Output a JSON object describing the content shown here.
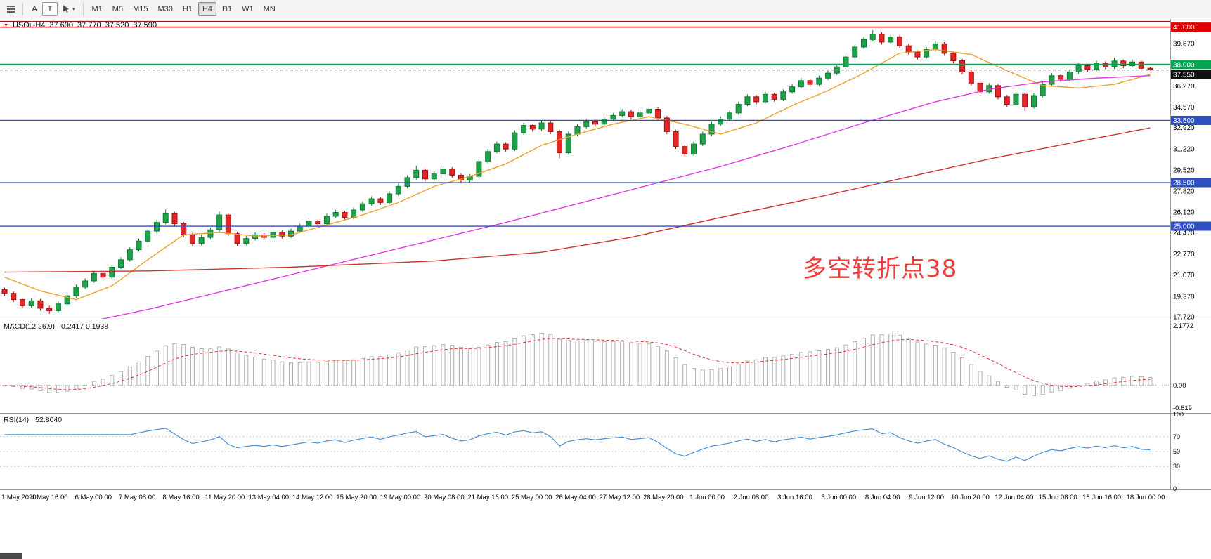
{
  "toolbar": {
    "letter_buttons": [
      "A",
      "T"
    ],
    "timeframes": [
      "M1",
      "M5",
      "M15",
      "M30",
      "H1",
      "H4",
      "D1",
      "W1",
      "MN"
    ],
    "active_timeframe": "H4"
  },
  "chart": {
    "header": {
      "symbol_timeframe": "USOil-H4",
      "open": "37.690",
      "high": "37.770",
      "low": "37.520",
      "close": "37.590"
    },
    "annotation": {
      "text": "多空转折点38",
      "color": "#f23b3b"
    },
    "current_price": {
      "value": 37.55,
      "label": "37.550"
    }
  },
  "macd_panel": {
    "title": "MACD(12,26,9)",
    "values": "0.2417 0.1938",
    "axis_labels": [
      "2.1772",
      "0.00",
      "-0.819"
    ]
  },
  "rsi_panel": {
    "title": "RSI(14)",
    "value": "52.8040",
    "axis_labels": [
      "100",
      "70",
      "50",
      "30",
      "0"
    ]
  },
  "chart_data": {
    "type": "candlestick",
    "symbol": "USOil",
    "timeframe": "H4",
    "x_range": [
      "1 May 2020",
      "18 Jun 2020"
    ],
    "y_range": [
      17.55,
      41.6
    ],
    "y_ticks": [
      "39.670",
      "36.270",
      "34.570",
      "32.920",
      "31.220",
      "29.520",
      "27.820",
      "26.120",
      "24.470",
      "22.770",
      "21.070",
      "19.370",
      "17.720"
    ],
    "x_labels": [
      "1 May 2020",
      "4 May 16:00",
      "6 May 00:00",
      "7 May 08:00",
      "8 May 16:00",
      "11 May 20:00",
      "13 May 04:00",
      "14 May 12:00",
      "15 May 20:00",
      "19 May 00:00",
      "20 May 08:00",
      "21 May 16:00",
      "25 May 00:00",
      "26 May 04:00",
      "27 May 12:00",
      "28 May 20:00",
      "1 Jun 00:00",
      "2 Jun 08:00",
      "3 Jun 16:00",
      "5 Jun 00:00",
      "8 Jun 04:00",
      "9 Jun 12:00",
      "10 Jun 20:00",
      "12 Jun 04:00",
      "15 Jun 08:00",
      "16 Jun 16:00",
      "18 Jun 00:00"
    ],
    "levels": [
      {
        "value": 41.45,
        "color": "#8e1b1b",
        "width": 1.6,
        "badge": null
      },
      {
        "value": 41.0,
        "color": "#e00000",
        "width": 1.4,
        "badge": "41.000",
        "badge_bg": "#e00000"
      },
      {
        "value": 38.0,
        "color": "#00a651",
        "width": 2.0,
        "badge": "38.000",
        "badge_bg": "#00a651"
      },
      {
        "value": 33.5,
        "color": "#2e4fc0",
        "width": 1.4,
        "badge": "33.500",
        "badge_bg": "#2e4fc0"
      },
      {
        "value": 28.5,
        "color": "#2e4fc0",
        "width": 1.4,
        "badge": "28.500",
        "badge_bg": "#2e4fc0"
      },
      {
        "value": 25.0,
        "color": "#2e4fc0",
        "width": 1.4,
        "badge": "25.000",
        "badge_bg": "#2e4fc0"
      }
    ],
    "candles": [
      [
        19.9,
        20.05,
        19.4,
        19.6
      ],
      [
        19.6,
        19.75,
        18.9,
        19.1
      ],
      [
        19.1,
        19.25,
        18.4,
        18.6
      ],
      [
        18.6,
        19.2,
        18.45,
        19.0
      ],
      [
        19.0,
        19.15,
        18.2,
        18.4
      ],
      [
        18.4,
        18.6,
        17.95,
        18.2
      ],
      [
        18.2,
        18.95,
        18.05,
        18.75
      ],
      [
        18.75,
        19.6,
        18.6,
        19.4
      ],
      [
        19.4,
        20.3,
        19.25,
        20.1
      ],
      [
        20.1,
        20.8,
        19.95,
        20.6
      ],
      [
        20.6,
        21.4,
        20.45,
        21.2
      ],
      [
        21.2,
        21.35,
        20.7,
        20.9
      ],
      [
        20.9,
        21.9,
        20.75,
        21.7
      ],
      [
        21.7,
        22.5,
        21.55,
        22.3
      ],
      [
        22.3,
        23.3,
        22.15,
        23.1
      ],
      [
        23.1,
        24.0,
        22.95,
        23.8
      ],
      [
        23.8,
        24.8,
        23.65,
        24.6
      ],
      [
        24.6,
        25.5,
        24.45,
        25.3
      ],
      [
        25.3,
        26.35,
        25.15,
        26.0
      ],
      [
        26.0,
        26.15,
        25.0,
        25.2
      ],
      [
        25.2,
        25.35,
        24.1,
        24.3
      ],
      [
        24.3,
        24.45,
        23.4,
        23.6
      ],
      [
        23.6,
        24.3,
        23.45,
        24.1
      ],
      [
        24.1,
        24.9,
        23.95,
        24.7
      ],
      [
        24.7,
        26.15,
        24.55,
        25.9
      ],
      [
        25.9,
        26.0,
        24.2,
        24.4
      ],
      [
        24.4,
        24.55,
        23.4,
        23.6
      ],
      [
        23.6,
        24.2,
        23.45,
        24.0
      ],
      [
        24.0,
        24.5,
        23.85,
        24.3
      ],
      [
        24.3,
        24.45,
        23.9,
        24.1
      ],
      [
        24.1,
        24.7,
        23.95,
        24.5
      ],
      [
        24.5,
        24.65,
        24.0,
        24.2
      ],
      [
        24.2,
        24.8,
        24.05,
        24.6
      ],
      [
        24.6,
        25.2,
        24.45,
        25.0
      ],
      [
        25.0,
        25.6,
        24.85,
        25.4
      ],
      [
        25.4,
        25.55,
        25.0,
        25.2
      ],
      [
        25.2,
        26.0,
        25.05,
        25.8
      ],
      [
        25.8,
        26.3,
        25.65,
        26.1
      ],
      [
        26.1,
        26.25,
        25.5,
        25.7
      ],
      [
        25.7,
        26.5,
        25.55,
        26.3
      ],
      [
        26.3,
        27.0,
        26.15,
        26.8
      ],
      [
        26.8,
        27.4,
        26.65,
        27.2
      ],
      [
        27.2,
        27.35,
        26.7,
        26.9
      ],
      [
        26.9,
        27.8,
        26.75,
        27.6
      ],
      [
        27.6,
        28.4,
        27.45,
        28.2
      ],
      [
        28.2,
        29.1,
        28.05,
        28.9
      ],
      [
        28.9,
        29.85,
        28.75,
        29.5
      ],
      [
        29.5,
        29.65,
        28.6,
        28.8
      ],
      [
        28.8,
        29.4,
        28.65,
        29.2
      ],
      [
        29.2,
        29.8,
        29.05,
        29.6
      ],
      [
        29.6,
        29.75,
        28.9,
        29.1
      ],
      [
        29.1,
        29.25,
        28.5,
        28.7
      ],
      [
        28.7,
        29.2,
        28.55,
        29.0
      ],
      [
        29.0,
        30.4,
        28.85,
        30.2
      ],
      [
        30.2,
        31.2,
        30.05,
        31.0
      ],
      [
        31.0,
        31.8,
        30.85,
        31.6
      ],
      [
        31.6,
        31.75,
        31.0,
        31.2
      ],
      [
        31.2,
        32.7,
        31.05,
        32.5
      ],
      [
        32.5,
        33.3,
        32.35,
        33.1
      ],
      [
        33.1,
        33.25,
        32.6,
        32.8
      ],
      [
        32.8,
        33.5,
        32.65,
        33.3
      ],
      [
        33.3,
        33.45,
        32.4,
        32.6
      ],
      [
        32.6,
        32.75,
        30.45,
        30.9
      ],
      [
        30.9,
        32.6,
        30.75,
        32.4
      ],
      [
        32.4,
        33.2,
        32.25,
        33.0
      ],
      [
        33.0,
        33.6,
        32.85,
        33.4
      ],
      [
        33.4,
        33.55,
        33.0,
        33.2
      ],
      [
        33.2,
        33.8,
        33.05,
        33.6
      ],
      [
        33.6,
        34.1,
        33.45,
        33.9
      ],
      [
        33.9,
        34.4,
        33.75,
        34.2
      ],
      [
        34.2,
        34.35,
        33.6,
        33.8
      ],
      [
        33.8,
        34.3,
        33.65,
        34.1
      ],
      [
        34.1,
        34.6,
        33.95,
        34.4
      ],
      [
        34.4,
        34.55,
        33.5,
        33.7
      ],
      [
        33.7,
        33.85,
        32.4,
        32.6
      ],
      [
        32.6,
        32.75,
        31.2,
        31.4
      ],
      [
        31.4,
        31.55,
        30.6,
        30.8
      ],
      [
        30.8,
        31.8,
        30.65,
        31.6
      ],
      [
        31.6,
        32.6,
        31.45,
        32.4
      ],
      [
        32.4,
        33.4,
        32.25,
        33.2
      ],
      [
        33.2,
        33.8,
        33.05,
        33.6
      ],
      [
        33.6,
        34.3,
        33.45,
        34.1
      ],
      [
        34.1,
        35.0,
        33.95,
        34.8
      ],
      [
        34.8,
        35.6,
        34.65,
        35.4
      ],
      [
        35.4,
        35.55,
        34.8,
        35.0
      ],
      [
        35.0,
        35.8,
        34.85,
        35.6
      ],
      [
        35.6,
        35.75,
        35.0,
        35.2
      ],
      [
        35.2,
        36.0,
        35.05,
        35.8
      ],
      [
        35.8,
        36.4,
        35.65,
        36.2
      ],
      [
        36.2,
        36.9,
        36.05,
        36.7
      ],
      [
        36.7,
        36.85,
        36.2,
        36.4
      ],
      [
        36.4,
        37.1,
        36.25,
        36.9
      ],
      [
        36.9,
        37.5,
        36.75,
        37.3
      ],
      [
        37.3,
        38.0,
        37.15,
        37.8
      ],
      [
        37.8,
        38.8,
        37.65,
        38.6
      ],
      [
        38.6,
        39.6,
        38.45,
        39.4
      ],
      [
        39.4,
        40.2,
        39.25,
        40.0
      ],
      [
        40.0,
        40.75,
        39.85,
        40.44
      ],
      [
        40.44,
        40.6,
        39.6,
        39.8
      ],
      [
        39.8,
        40.4,
        39.65,
        40.2
      ],
      [
        40.2,
        40.35,
        39.3,
        39.5
      ],
      [
        39.5,
        39.65,
        38.8,
        39.0
      ],
      [
        39.0,
        39.15,
        38.4,
        38.6
      ],
      [
        38.6,
        39.4,
        38.45,
        39.2
      ],
      [
        39.2,
        39.9,
        39.05,
        39.66
      ],
      [
        39.66,
        39.8,
        38.7,
        38.9
      ],
      [
        38.9,
        39.05,
        38.1,
        38.3
      ],
      [
        38.3,
        38.45,
        37.2,
        37.4
      ],
      [
        37.4,
        37.55,
        36.3,
        36.5
      ],
      [
        36.5,
        36.65,
        35.6,
        35.8
      ],
      [
        35.8,
        36.5,
        35.65,
        36.3
      ],
      [
        36.3,
        36.45,
        35.2,
        35.4
      ],
      [
        35.4,
        35.55,
        34.6,
        34.8
      ],
      [
        34.8,
        35.8,
        34.65,
        35.6
      ],
      [
        35.6,
        35.75,
        34.25,
        34.6
      ],
      [
        34.6,
        35.7,
        34.45,
        35.5
      ],
      [
        35.5,
        36.6,
        35.35,
        36.4
      ],
      [
        36.4,
        37.3,
        36.25,
        37.1
      ],
      [
        37.1,
        37.25,
        36.6,
        36.8
      ],
      [
        36.8,
        37.6,
        36.65,
        37.4
      ],
      [
        37.4,
        38.1,
        37.25,
        37.9
      ],
      [
        37.9,
        38.05,
        37.4,
        37.6
      ],
      [
        37.6,
        38.3,
        37.45,
        38.1
      ],
      [
        38.1,
        38.25,
        37.6,
        37.8
      ],
      [
        37.8,
        38.55,
        37.65,
        38.28
      ],
      [
        38.28,
        38.4,
        37.7,
        37.9
      ],
      [
        37.9,
        38.4,
        37.75,
        38.2
      ],
      [
        38.2,
        38.35,
        37.5,
        37.69
      ],
      [
        37.69,
        37.77,
        37.52,
        37.59
      ]
    ],
    "overlays": {
      "ma_fast": {
        "color": "#eda22e",
        "points": [
          [
            0,
            20.9
          ],
          [
            4,
            19.8
          ],
          [
            8,
            19.1
          ],
          [
            12,
            20.2
          ],
          [
            16,
            22.3
          ],
          [
            20,
            24.3
          ],
          [
            24,
            24.5
          ],
          [
            28,
            24.2
          ],
          [
            32,
            24.3
          ],
          [
            36,
            25.1
          ],
          [
            40,
            25.9
          ],
          [
            44,
            26.9
          ],
          [
            48,
            28.2
          ],
          [
            52,
            29.0
          ],
          [
            56,
            30.0
          ],
          [
            60,
            31.5
          ],
          [
            64,
            32.4
          ],
          [
            68,
            33.2
          ],
          [
            72,
            33.8
          ],
          [
            76,
            33.2
          ],
          [
            80,
            32.4
          ],
          [
            84,
            33.3
          ],
          [
            88,
            34.7
          ],
          [
            92,
            35.9
          ],
          [
            96,
            37.3
          ],
          [
            100,
            38.9
          ],
          [
            104,
            39.2
          ],
          [
            108,
            38.8
          ],
          [
            112,
            37.5
          ],
          [
            116,
            36.3
          ],
          [
            120,
            36.1
          ],
          [
            124,
            36.4
          ],
          [
            128,
            37.2
          ]
        ]
      },
      "ma_mid": {
        "color": "#e13ce1",
        "points": [
          [
            0,
            16.1
          ],
          [
            8,
            17.1
          ],
          [
            16,
            18.3
          ],
          [
            24,
            19.7
          ],
          [
            32,
            21.1
          ],
          [
            40,
            22.5
          ],
          [
            48,
            23.9
          ],
          [
            56,
            25.3
          ],
          [
            64,
            26.8
          ],
          [
            72,
            28.3
          ],
          [
            80,
            29.8
          ],
          [
            88,
            31.5
          ],
          [
            96,
            33.3
          ],
          [
            104,
            35.0
          ],
          [
            110,
            36.0
          ],
          [
            116,
            36.6
          ],
          [
            122,
            36.9
          ],
          [
            128,
            37.1
          ]
        ]
      },
      "ma_slow": {
        "color": "#cc3333",
        "points": [
          [
            0,
            21.3
          ],
          [
            16,
            21.4
          ],
          [
            32,
            21.7
          ],
          [
            48,
            22.2
          ],
          [
            60,
            22.9
          ],
          [
            70,
            24.1
          ],
          [
            80,
            25.7
          ],
          [
            90,
            27.2
          ],
          [
            100,
            28.8
          ],
          [
            110,
            30.4
          ],
          [
            120,
            31.8
          ],
          [
            128,
            32.9
          ]
        ]
      }
    },
    "indicators": {
      "macd": {
        "params": [
          12,
          26,
          9
        ],
        "current": [
          0.2417,
          0.1938
        ],
        "y_range": [
          -0.95,
          2.35
        ]
      },
      "rsi": {
        "period": 14,
        "current": 52.804,
        "levels": [
          70,
          50,
          30
        ],
        "y_range": [
          0,
          100
        ]
      }
    }
  },
  "colors": {
    "candle_up": "#1fa24a",
    "candle_up_border": "#0e7d33",
    "candle_down": "#e32626",
    "candle_down_border": "#a61111",
    "separator": "#9a9a9a",
    "axis_text": "#000000",
    "macd_bar": "#aeaeae",
    "macd_signal": "#e03030",
    "rsi_line": "#4a90d6",
    "current_price_line": "#666666",
    "current_badge_bg": "#111111"
  }
}
